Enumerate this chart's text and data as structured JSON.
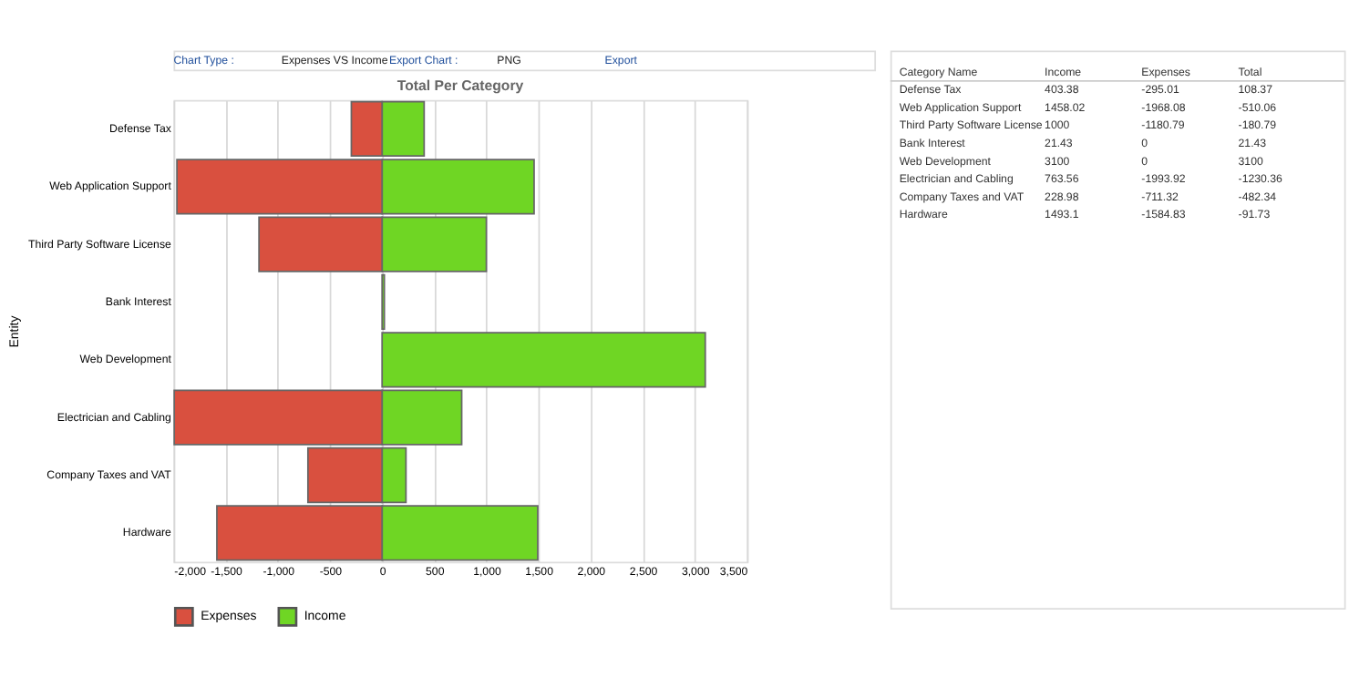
{
  "chart_data": [
    {
      "type": "bar",
      "orientation": "horizontal",
      "stacked": true,
      "title": "Total Per Category",
      "ylabel": "Entity",
      "categories": [
        "Defense Tax",
        "Web Application Support",
        "Third Party Software License",
        "Bank Interest",
        "Web Development",
        "Electrician and Cabling",
        "Company Taxes and VAT",
        "Hardware"
      ],
      "series": [
        {
          "name": "Income",
          "color": "#6fd624",
          "values": [
            403.38,
            1458.02,
            1000,
            21.43,
            3100,
            763.56,
            228.98,
            1493.1
          ]
        },
        {
          "name": "Expenses",
          "color": "#d9503f",
          "values": [
            -295.01,
            -1968.08,
            -1180.79,
            0,
            0,
            -1993.92,
            -711.32,
            -1584.83
          ]
        }
      ],
      "xlim": [
        -2000,
        3500
      ],
      "xticks": [
        {
          "value": -2000,
          "label": "-2,000"
        },
        {
          "value": -1500,
          "label": "-1,500"
        },
        {
          "value": -1000,
          "label": "-1,000"
        },
        -500,
        0,
        500,
        {
          "value": 1000,
          "label": "1,000"
        },
        {
          "value": 1500,
          "label": "1,500"
        },
        {
          "value": 2000,
          "label": "2,000"
        },
        {
          "value": 2500,
          "label": "2,500"
        },
        {
          "value": 3000,
          "label": "3,000"
        },
        {
          "value": 3500,
          "label": "3,500"
        }
      ],
      "grid": "x",
      "legend": "bottom",
      "annotations": [
        "Chart Type :",
        "Expenses VS Income",
        "Export Chart :",
        "PNG",
        "Export"
      ]
    },
    {
      "type": "other",
      "data_labels": true,
      "categories": [
        "Defense Tax",
        "Web Application Support",
        "Third Party Software License",
        "Bank Interest",
        "Web Development",
        "Electrician and Cabling",
        "Company Taxes and VAT",
        "Hardware"
      ],
      "series": [
        {
          "name": "Income",
          "values": [
            403.38,
            1458.02,
            1000,
            21.43,
            3100,
            763.56,
            228.98,
            1493.1
          ]
        },
        {
          "name": "Expenses",
          "values": [
            -295.01,
            -1968.08,
            -1180.79,
            0,
            0,
            -1993.92,
            -711.32,
            -1584.83
          ]
        },
        {
          "name": "Total",
          "values": [
            108.37,
            -510.06,
            -180.79,
            21.43,
            3100,
            -1230.36,
            -482.34,
            -91.73
          ]
        }
      ],
      "annotations": [
        "Category Name"
      ]
    }
  ]
}
